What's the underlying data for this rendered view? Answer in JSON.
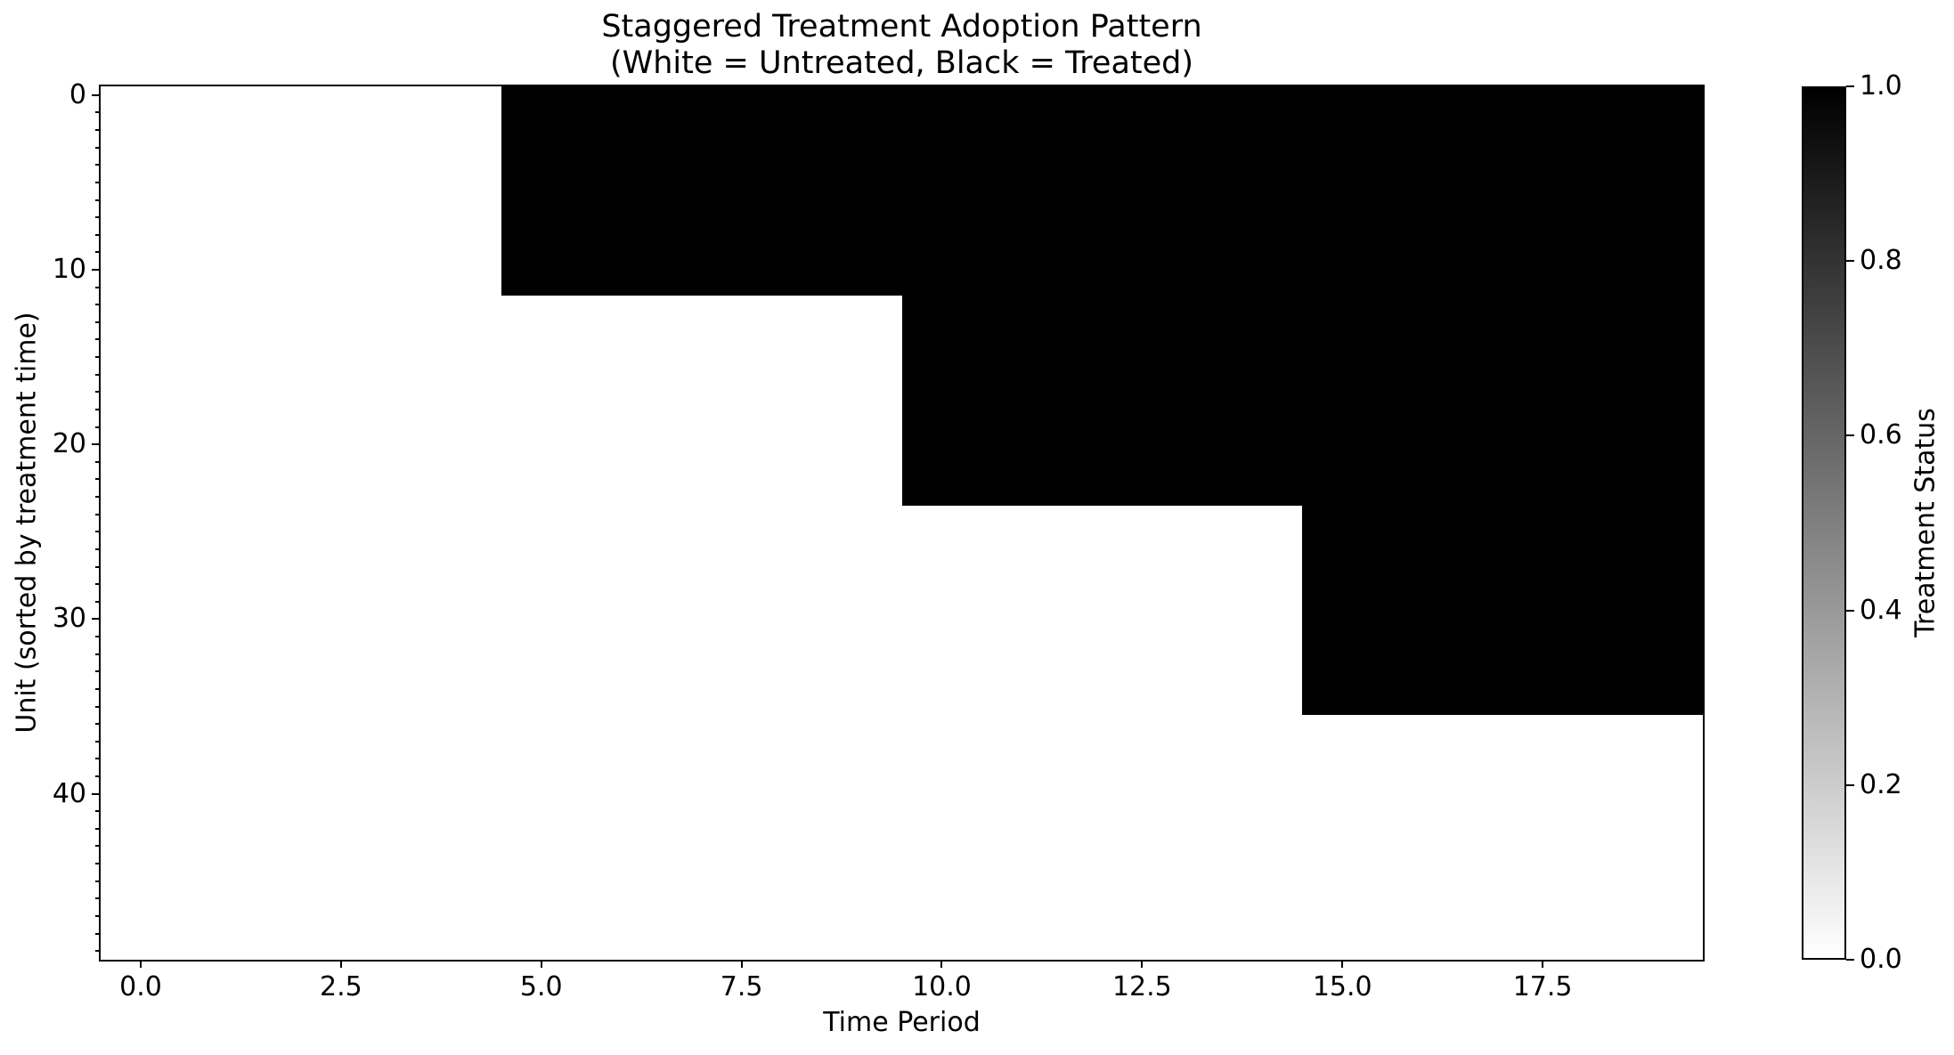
{
  "figure": {
    "title_line1": "Staggered Treatment Adoption Pattern",
    "title_line2": "(White = Untreated, Black = Treated)",
    "background_color": "#ffffff",
    "text_color": "#000000"
  },
  "chart_data": {
    "type": "heatmap",
    "title": "Staggered Treatment Adoption Pattern",
    "subtitle": "(White = Untreated, Black = Treated)",
    "xlabel": "Time Period",
    "ylabel": "Unit (sorted by treatment time)",
    "colorbar_label": "Treatment Status",
    "n_units": 50,
    "n_time_periods": 20,
    "x_extent": [
      -0.5,
      19.5
    ],
    "y_extent": [
      -0.5,
      49.5
    ],
    "value_colors": {
      "untreated": "#ffffff",
      "treated": "#000000"
    },
    "value_meaning": {
      "0": "Untreated",
      "1": "Treated"
    },
    "cohorts": [
      {
        "unit_start": 0,
        "unit_end": 11,
        "treatment_start_period": 5
      },
      {
        "unit_start": 12,
        "unit_end": 23,
        "treatment_start_period": 10
      },
      {
        "unit_start": 24,
        "unit_end": 35,
        "treatment_start_period": 15
      },
      {
        "unit_start": 36,
        "unit_end": 49,
        "treatment_start_period": null
      }
    ],
    "xticks": {
      "values": [
        0,
        2.5,
        5,
        7.5,
        10,
        12.5,
        15,
        17.5
      ],
      "labels": [
        "0.0",
        "2.5",
        "5.0",
        "7.5",
        "10.0",
        "12.5",
        "15.0",
        "17.5"
      ]
    },
    "yticks": {
      "values": [
        0,
        10,
        20,
        30,
        40
      ],
      "labels": [
        "0",
        "10",
        "20",
        "30",
        "40"
      ],
      "minor_interval": 1
    },
    "colorbar_ticks": {
      "values": [
        0,
        0.2,
        0.4,
        0.6,
        0.8,
        1.0
      ],
      "labels": [
        "0.0",
        "0.2",
        "0.4",
        "0.6",
        "0.8",
        "1.0"
      ]
    },
    "colorbar_range": [
      0,
      1
    ],
    "grid": false,
    "legend_position": "right-colorbar"
  }
}
